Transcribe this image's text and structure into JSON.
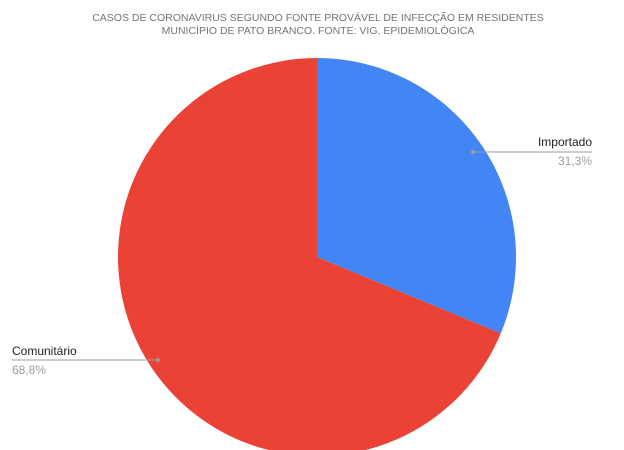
{
  "chart_data": {
    "type": "pie",
    "title_lines": [
      "CASOS DE CORONAVIRUS SEGUNDO FONTE PROVÁVEL DE INFECÇÃO EM RESIDENTES",
      "MUNICÍPIO DE PATO BRANCO. FONTE: VIG. EPIDEMIOLÓGICA"
    ],
    "slices": [
      {
        "label": "Importado",
        "value": 31.3,
        "display": "31,3%",
        "color": "#4285f4"
      },
      {
        "label": "Comunitário",
        "value": 68.8,
        "display": "68,8%",
        "color": "#ea4335"
      }
    ],
    "start_angle_deg": 0,
    "direction": "clockwise",
    "label_line_color": "#9e9e9e"
  }
}
